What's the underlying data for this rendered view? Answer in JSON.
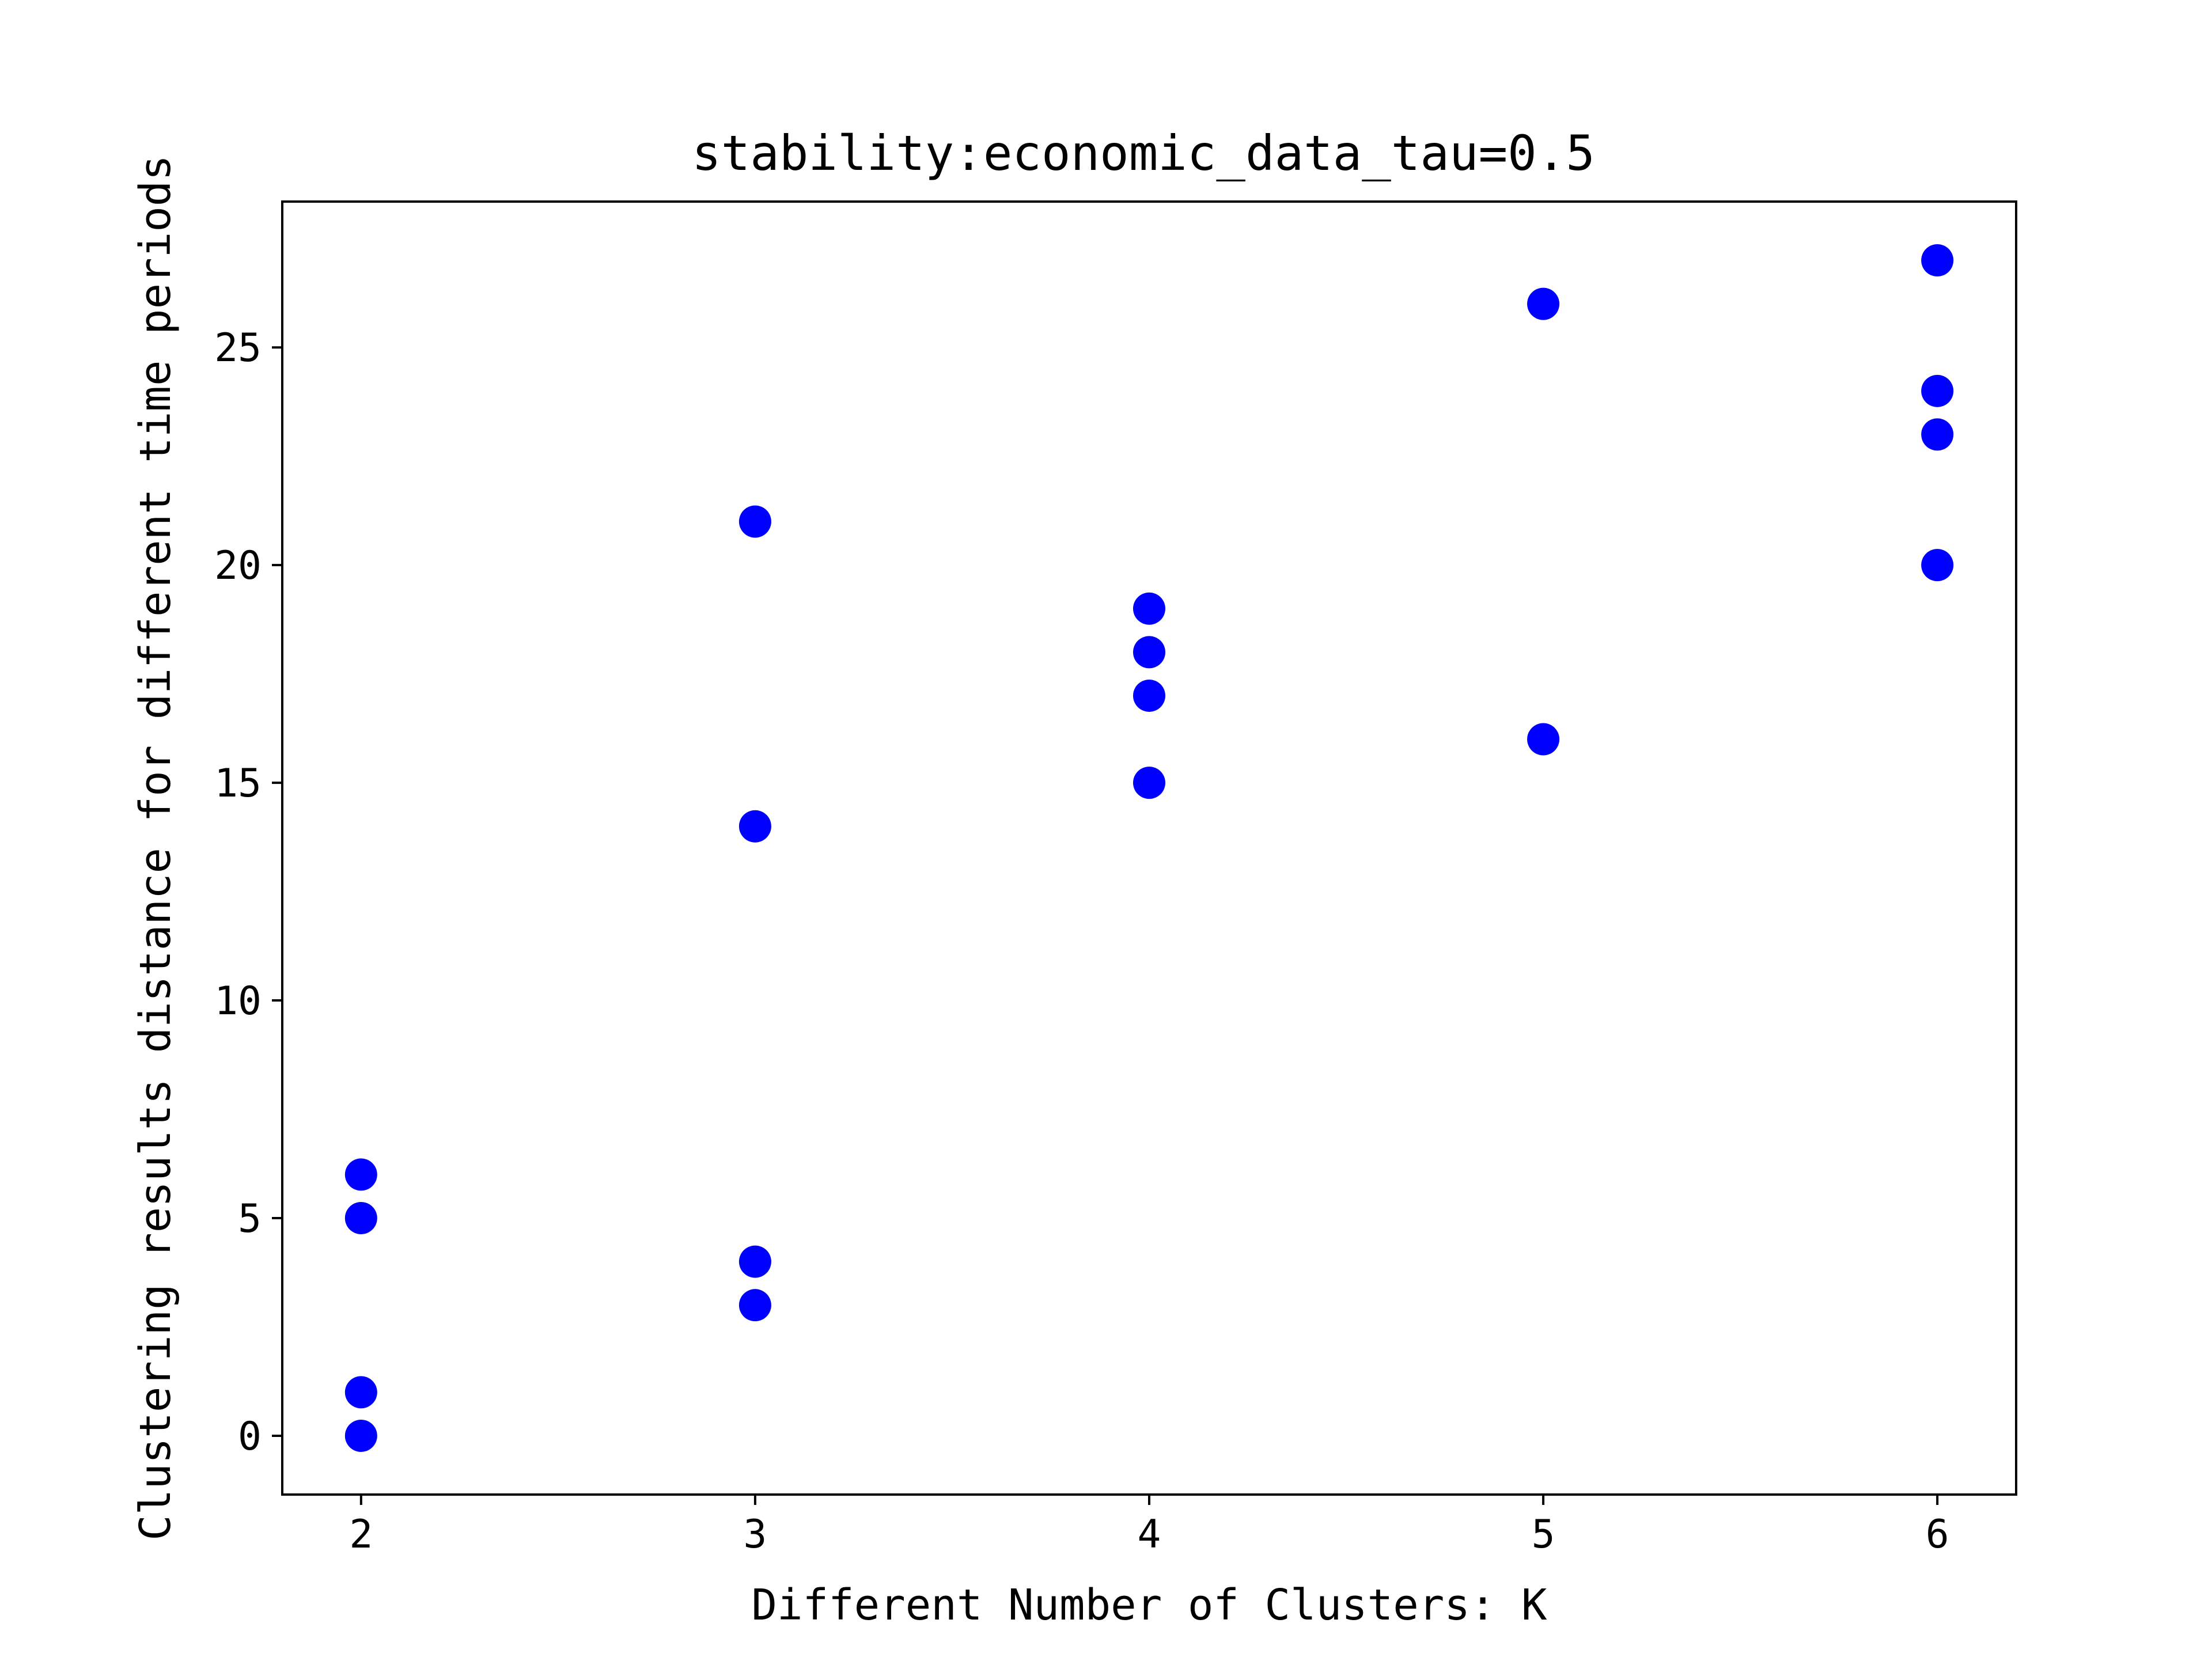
{
  "chart_data": {
    "type": "scatter",
    "title": "stability:economic_data_tau=0.5",
    "xlabel": "Different Number of Clusters: K",
    "ylabel": "Clustering results distance for different time periods",
    "xlim": [
      1.8,
      6.2
    ],
    "ylim": [
      -1.35,
      28.35
    ],
    "xticks": [
      2,
      3,
      4,
      5,
      6
    ],
    "yticks": [
      0,
      5,
      10,
      15,
      20,
      25
    ],
    "grid": false,
    "legend": "none",
    "marker_color": "#0000ff",
    "series": [
      {
        "points": [
          {
            "x": 2,
            "y": 0
          },
          {
            "x": 2,
            "y": 1
          },
          {
            "x": 2,
            "y": 5
          },
          {
            "x": 2,
            "y": 6
          },
          {
            "x": 3,
            "y": 3
          },
          {
            "x": 3,
            "y": 4
          },
          {
            "x": 3,
            "y": 14
          },
          {
            "x": 3,
            "y": 21
          },
          {
            "x": 4,
            "y": 15
          },
          {
            "x": 4,
            "y": 17
          },
          {
            "x": 4,
            "y": 18
          },
          {
            "x": 4,
            "y": 19
          },
          {
            "x": 5,
            "y": 16
          },
          {
            "x": 5,
            "y": 26
          },
          {
            "x": 6,
            "y": 20
          },
          {
            "x": 6,
            "y": 23
          },
          {
            "x": 6,
            "y": 24
          },
          {
            "x": 6,
            "y": 27
          }
        ]
      }
    ]
  }
}
